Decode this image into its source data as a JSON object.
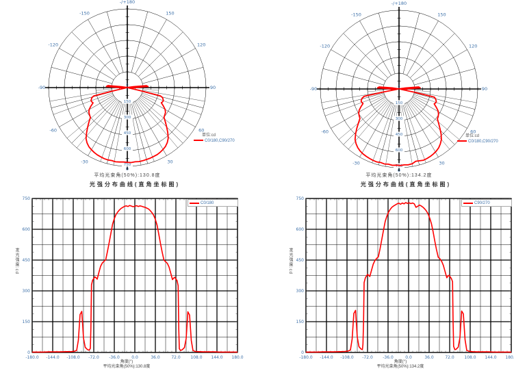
{
  "colors": {
    "curve": "#ff0000",
    "grid": "#000000",
    "tick_label": "#3b6fa8",
    "text": "#444444"
  },
  "chart_data": [
    {
      "id": "polar-left",
      "type": "polar-line",
      "rmax": 750,
      "rings": [
        150,
        300,
        450,
        600,
        750
      ],
      "center_label": "0",
      "unit_label": "单位:cd",
      "angle_labels": [
        {
          "angle": 180,
          "text": "-/+180"
        },
        {
          "angle": -150,
          "text": "-150"
        },
        {
          "angle": 150,
          "text": "150"
        },
        {
          "angle": -120,
          "text": "-120"
        },
        {
          "angle": 120,
          "text": "120"
        },
        {
          "angle": -90,
          "text": "-90"
        },
        {
          "angle": 90,
          "text": "90"
        },
        {
          "angle": -60,
          "text": "-60"
        },
        {
          "angle": 60,
          "text": "60"
        },
        {
          "angle": -30,
          "text": "-30"
        },
        {
          "angle": 30,
          "text": "30"
        },
        {
          "angle": 0,
          "text": "0"
        }
      ],
      "caption": "平均光束角(50%):130.8度",
      "series": [
        {
          "name": "C0/180,C90/270",
          "color": "#ff0000",
          "points": [
            [
              -180,
              2
            ],
            [
              -170,
              2
            ],
            [
              -160,
              2
            ],
            [
              -150,
              3
            ],
            [
              -140,
              3
            ],
            [
              -130,
              3
            ],
            [
              -120,
              4
            ],
            [
              -112,
              4
            ],
            [
              -106,
              6
            ],
            [
              -102,
              10
            ],
            [
              -99,
              60
            ],
            [
              -96,
              185
            ],
            [
              -93,
              200
            ],
            [
              -90,
              70
            ],
            [
              -87,
              25
            ],
            [
              -83,
              14
            ],
            [
              -80,
              11
            ],
            [
              -78,
              20
            ],
            [
              -77,
              120
            ],
            [
              -76,
              330
            ],
            [
              -74,
              352
            ],
            [
              -72,
              360
            ],
            [
              -70,
              368
            ],
            [
              -68,
              364
            ],
            [
              -66,
              357
            ],
            [
              -63,
              390
            ],
            [
              -60,
              420
            ],
            [
              -57,
              436
            ],
            [
              -54,
              444
            ],
            [
              -51,
              452
            ],
            [
              -48,
              492
            ],
            [
              -45,
              535
            ],
            [
              -42,
              580
            ],
            [
              -39,
              625
            ],
            [
              -36,
              652
            ],
            [
              -33,
              672
            ],
            [
              -30,
              684
            ],
            [
              -27,
              694
            ],
            [
              -24,
              702
            ],
            [
              -21,
              707
            ],
            [
              -18,
              712
            ],
            [
              -15,
              714
            ],
            [
              -12,
              711
            ],
            [
              -9,
              716
            ],
            [
              -6,
              713
            ],
            [
              -3,
              710
            ],
            [
              0,
              712
            ],
            [
              3,
              715
            ],
            [
              6,
              711
            ],
            [
              9,
              714
            ],
            [
              12,
              712
            ],
            [
              15,
              709
            ],
            [
              18,
              707
            ],
            [
              21,
              703
            ],
            [
              24,
              699
            ],
            [
              27,
              691
            ],
            [
              30,
              681
            ],
            [
              33,
              668
            ],
            [
              36,
              648
            ],
            [
              39,
              620
            ],
            [
              42,
              576
            ],
            [
              45,
              530
            ],
            [
              48,
              488
            ],
            [
              51,
              450
            ],
            [
              54,
              442
            ],
            [
              57,
              434
            ],
            [
              60,
              416
            ],
            [
              63,
              386
            ],
            [
              66,
              355
            ],
            [
              68,
              362
            ],
            [
              70,
              366
            ],
            [
              72,
              358
            ],
            [
              74,
              350
            ],
            [
              76,
              325
            ],
            [
              77,
              115
            ],
            [
              78,
              18
            ],
            [
              80,
              10
            ],
            [
              83,
              13
            ],
            [
              87,
              24
            ],
            [
              90,
              68
            ],
            [
              93,
              198
            ],
            [
              96,
              182
            ],
            [
              99,
              58
            ],
            [
              102,
              9
            ],
            [
              106,
              5
            ],
            [
              112,
              4
            ],
            [
              120,
              3
            ],
            [
              130,
              3
            ],
            [
              140,
              3
            ],
            [
              150,
              2
            ],
            [
              160,
              2
            ],
            [
              170,
              2
            ],
            [
              180,
              2
            ]
          ]
        }
      ]
    },
    {
      "id": "polar-right",
      "type": "polar-line",
      "rmax": 750,
      "rings": [
        150,
        300,
        450,
        600,
        750
      ],
      "center_label": "0",
      "unit_label": "单位:cd",
      "angle_labels": [
        {
          "angle": 180,
          "text": "-/+180"
        },
        {
          "angle": -150,
          "text": "-150"
        },
        {
          "angle": 150,
          "text": "150"
        },
        {
          "angle": -120,
          "text": "-120"
        },
        {
          "angle": 120,
          "text": "120"
        },
        {
          "angle": -90,
          "text": "-90"
        },
        {
          "angle": 90,
          "text": "90"
        },
        {
          "angle": -60,
          "text": "-60"
        },
        {
          "angle": 60,
          "text": "60"
        },
        {
          "angle": -30,
          "text": "-30"
        },
        {
          "angle": 30,
          "text": "30"
        },
        {
          "angle": 0,
          "text": "0"
        }
      ],
      "caption": "平均光束角(50%):134.2度",
      "series": [
        {
          "name": "C0/180,C90/270",
          "color": "#ff0000",
          "points": [
            [
              -180,
              2
            ],
            [
              -170,
              2
            ],
            [
              -160,
              2
            ],
            [
              -150,
              3
            ],
            [
              -140,
              3
            ],
            [
              -130,
              3
            ],
            [
              -120,
              4
            ],
            [
              -112,
              5
            ],
            [
              -106,
              7
            ],
            [
              -102,
              12
            ],
            [
              -99,
              65
            ],
            [
              -96,
              190
            ],
            [
              -93,
              205
            ],
            [
              -90,
              75
            ],
            [
              -87,
              28
            ],
            [
              -83,
              16
            ],
            [
              -81,
              14
            ],
            [
              -80,
              40
            ],
            [
              -79,
              150
            ],
            [
              -78,
              340
            ],
            [
              -76,
              362
            ],
            [
              -74,
              372
            ],
            [
              -72,
              380
            ],
            [
              -70,
              376
            ],
            [
              -68,
              370
            ],
            [
              -65,
              400
            ],
            [
              -62,
              430
            ],
            [
              -59,
              448
            ],
            [
              -56,
              458
            ],
            [
              -53,
              466
            ],
            [
              -50,
              505
            ],
            [
              -47,
              550
            ],
            [
              -44,
              595
            ],
            [
              -41,
              638
            ],
            [
              -38,
              664
            ],
            [
              -35,
              684
            ],
            [
              -32,
              698
            ],
            [
              -29,
              708
            ],
            [
              -26,
              714
            ],
            [
              -23,
              719
            ],
            [
              -20,
              724
            ],
            [
              -17,
              727
            ],
            [
              -14,
              722
            ],
            [
              -11,
              728
            ],
            [
              -8,
              724
            ],
            [
              -5,
              730
            ],
            [
              -2,
              726
            ],
            [
              1,
              729
            ],
            [
              4,
              725
            ],
            [
              7,
              728
            ],
            [
              10,
              724
            ],
            [
              13,
              707
            ],
            [
              16,
              712
            ],
            [
              19,
              718
            ],
            [
              22,
              714
            ],
            [
              25,
              708
            ],
            [
              28,
              700
            ],
            [
              31,
              690
            ],
            [
              34,
              676
            ],
            [
              37,
              655
            ],
            [
              40,
              628
            ],
            [
              43,
              588
            ],
            [
              46,
              542
            ],
            [
              49,
              500
            ],
            [
              52,
              464
            ],
            [
              55,
              456
            ],
            [
              58,
              444
            ],
            [
              61,
              424
            ],
            [
              64,
              394
            ],
            [
              67,
              364
            ],
            [
              69,
              372
            ],
            [
              71,
              376
            ],
            [
              73,
              368
            ],
            [
              75,
              360
            ],
            [
              77,
              345
            ],
            [
              78,
              150
            ],
            [
              79,
              30
            ],
            [
              81,
              14
            ],
            [
              83,
              15
            ],
            [
              87,
              26
            ],
            [
              90,
              72
            ],
            [
              93,
              202
            ],
            [
              96,
              188
            ],
            [
              99,
              62
            ],
            [
              102,
              10
            ],
            [
              106,
              6
            ],
            [
              112,
              4
            ],
            [
              120,
              3
            ],
            [
              130,
              3
            ],
            [
              140,
              3
            ],
            [
              150,
              2
            ],
            [
              160,
              2
            ],
            [
              170,
              2
            ],
            [
              180,
              2
            ]
          ]
        }
      ]
    },
    {
      "id": "cart-left",
      "type": "line",
      "title": "光强分布曲线(直角坐标图)",
      "xlabel": "角度(°)",
      "ylabel": "发光强度:cd",
      "footer": "平均光束角(50%):130.8度",
      "xlim": [
        -180,
        180
      ],
      "ylim": [
        0,
        750
      ],
      "x_minor_step": 18,
      "y_minor_step": 75,
      "xticks": [
        -180,
        -144,
        -108,
        -72,
        -36,
        0,
        36,
        72,
        108,
        144,
        180
      ],
      "xtick_labels": [
        "-180.0",
        "-144.0",
        "-108.0",
        "-72.0",
        "-36.0",
        "0.0",
        "36.0",
        "72.0",
        "108.0",
        "144.0",
        "180.0"
      ],
      "yticks": [
        0,
        150,
        300,
        450,
        600,
        750
      ],
      "grid": true,
      "legend_position": "top-right",
      "series": [
        {
          "name": "C0/180",
          "color": "#ff0000",
          "points_from": "polar-left"
        }
      ]
    },
    {
      "id": "cart-right",
      "type": "line",
      "title": "光强分布曲线(直角坐标图)",
      "xlabel": "角度(°)",
      "ylabel": "发光强度:cd",
      "footer": "平均光束角(50%):134.2度",
      "xlim": [
        -180,
        180
      ],
      "ylim": [
        0,
        750
      ],
      "x_minor_step": 18,
      "y_minor_step": 75,
      "xticks": [
        -180,
        -144,
        -108,
        -72,
        -36,
        0,
        36,
        72,
        108,
        144,
        180
      ],
      "xtick_labels": [
        "-180.0",
        "-144.0",
        "-108.0",
        "-72.0",
        "-36.0",
        "0.0",
        "36.0",
        "72.0",
        "108.0",
        "144.0",
        "180.0"
      ],
      "yticks": [
        0,
        150,
        300,
        450,
        600,
        750
      ],
      "grid": true,
      "legend_position": "top-right",
      "series": [
        {
          "name": "C90/270",
          "color": "#ff0000",
          "points_from": "polar-right"
        }
      ]
    }
  ]
}
